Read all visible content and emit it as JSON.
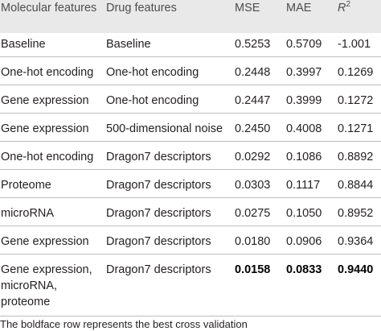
{
  "header": {
    "molecular": "Molecular features",
    "drug": "Drug features",
    "mse": "MSE",
    "mae": "MAE",
    "r2_base": "R",
    "r2_sup": "2"
  },
  "rows": [
    {
      "molecular": "Baseline",
      "drug": "Baseline",
      "mse": "0.5253",
      "mae": "0.5709",
      "r2": "-1.001"
    },
    {
      "molecular": "One-hot encoding",
      "drug": "One-hot encoding",
      "mse": "0.2448",
      "mae": "0.3997",
      "r2": "0.1269"
    },
    {
      "molecular": "Gene expression",
      "drug": "One-hot encoding",
      "mse": "0.2447",
      "mae": "0.3999",
      "r2": "0.1272"
    },
    {
      "molecular": "Gene expression",
      "drug": "500-dimensional noise",
      "mse": "0.2450",
      "mae": "0.4008",
      "r2": "0.1271"
    },
    {
      "molecular": "One-hot encoding",
      "drug": "Dragon7 descriptors",
      "mse": "0.0292",
      "mae": "0.1086",
      "r2": "0.8892"
    },
    {
      "molecular": "Proteome",
      "drug": "Dragon7 descriptors",
      "mse": "0.0303",
      "mae": "0.1117",
      "r2": "0.8844"
    },
    {
      "molecular": "microRNA",
      "drug": "Dragon7 descriptors",
      "mse": "0.0275",
      "mae": "0.1050",
      "r2": "0.8952"
    },
    {
      "molecular": "Gene expression",
      "drug": "Dragon7 descriptors",
      "mse": "0.0180",
      "mae": "0.0906",
      "r2": "0.9364"
    },
    {
      "molecular": "Gene expression, microRNA, proteome",
      "drug": "Dragon7 descriptors",
      "mse": "0.0158",
      "mae": "0.0833",
      "r2": "0.9440"
    }
  ],
  "footnote": "The boldface row represents the best cross validation"
}
